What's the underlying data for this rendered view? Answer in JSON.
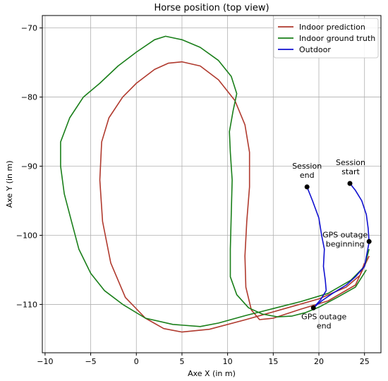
{
  "chart_data": {
    "type": "line",
    "title": "Horse position (top view)",
    "xlabel": "Axe X (in m)",
    "ylabel": "Axe Y (in m)",
    "xlim": [
      -10.3,
      26.8
    ],
    "ylim": [
      -117,
      -68.2
    ],
    "xticks": [
      -10,
      -5,
      0,
      5,
      10,
      15,
      20,
      25
    ],
    "yticks": [
      -70,
      -80,
      -90,
      -100,
      -110
    ],
    "grid": true,
    "legend_position": "top-right",
    "colors": {
      "indoor_prediction": "#b03a2e",
      "indoor_ground_truth": "#1a7f1a",
      "outdoor": "#1010d0",
      "marker": "#000000"
    },
    "series": [
      {
        "name": "Indoor prediction",
        "key": "indoor_prediction",
        "points": [
          [
            25,
            -104
          ],
          [
            24.5,
            -105.8
          ],
          [
            23,
            -107.5
          ],
          [
            20,
            -109.2
          ],
          [
            16,
            -110.7
          ],
          [
            12,
            -112.2
          ],
          [
            8,
            -113.6
          ],
          [
            5,
            -114
          ],
          [
            3,
            -113.5
          ],
          [
            1,
            -112
          ],
          [
            -1.2,
            -109
          ],
          [
            -2.8,
            -104
          ],
          [
            -3.7,
            -98
          ],
          [
            -4,
            -92
          ],
          [
            -3.8,
            -86.5
          ],
          [
            -3,
            -83
          ],
          [
            -1.5,
            -80
          ],
          [
            0,
            -78
          ],
          [
            2,
            -76
          ],
          [
            3.5,
            -75.1
          ],
          [
            5,
            -74.9
          ],
          [
            7,
            -75.5
          ],
          [
            9,
            -77.5
          ],
          [
            10.8,
            -80.5
          ],
          [
            11.9,
            -84
          ],
          [
            12.4,
            -88
          ],
          [
            12.4,
            -93
          ],
          [
            12.1,
            -98
          ],
          [
            11.9,
            -103
          ],
          [
            12,
            -107.5
          ],
          [
            12.6,
            -110.8
          ],
          [
            13.5,
            -112.2
          ],
          [
            15,
            -112
          ],
          [
            18,
            -110.7
          ],
          [
            21,
            -109.5
          ],
          [
            24,
            -107.2
          ],
          [
            25.5,
            -103
          ]
        ]
      },
      {
        "name": "Indoor ground truth",
        "key": "indoor_ground_truth",
        "points": [
          [
            25.5,
            -102
          ],
          [
            25,
            -104.5
          ],
          [
            23.5,
            -106.5
          ],
          [
            21,
            -108.4
          ],
          [
            18,
            -109.6
          ],
          [
            15,
            -110.6
          ],
          [
            12,
            -111.6
          ],
          [
            9,
            -112.7
          ],
          [
            7,
            -113.2
          ],
          [
            4,
            -112.9
          ],
          [
            1,
            -112
          ],
          [
            -1.5,
            -110
          ],
          [
            -3.5,
            -108
          ],
          [
            -5,
            -105.5
          ],
          [
            -6.3,
            -102
          ],
          [
            -7.1,
            -98
          ],
          [
            -7.9,
            -94
          ],
          [
            -8.3,
            -90
          ],
          [
            -8.3,
            -86.5
          ],
          [
            -7.3,
            -83
          ],
          [
            -5.8,
            -80
          ],
          [
            -4,
            -78
          ],
          [
            -2,
            -75.5
          ],
          [
            0,
            -73.5
          ],
          [
            2,
            -71.7
          ],
          [
            3.2,
            -71.2
          ],
          [
            5,
            -71.7
          ],
          [
            7,
            -72.8
          ],
          [
            9,
            -74.7
          ],
          [
            10.4,
            -77
          ],
          [
            11,
            -79.5
          ],
          [
            10.6,
            -82
          ],
          [
            10.2,
            -85
          ],
          [
            10.3,
            -88
          ],
          [
            10.5,
            -92
          ],
          [
            10.4,
            -97
          ],
          [
            10.3,
            -102
          ],
          [
            10.3,
            -106
          ],
          [
            11,
            -108.6
          ],
          [
            12.3,
            -110.5
          ],
          [
            13.8,
            -111.4
          ],
          [
            15.5,
            -111.8
          ],
          [
            17,
            -111.7
          ],
          [
            18.5,
            -111.2
          ],
          [
            20,
            -110.4
          ],
          [
            22,
            -109
          ],
          [
            24,
            -107.5
          ],
          [
            25.2,
            -105
          ]
        ]
      },
      {
        "name": "Outdoor",
        "key": "outdoor",
        "points": [
          [
            23.4,
            -92.5
          ],
          [
            24,
            -93.5
          ],
          [
            24.7,
            -95
          ],
          [
            25.2,
            -97
          ],
          [
            25.4,
            -99
          ],
          [
            25.5,
            -101
          ],
          [
            25,
            -104.5
          ],
          [
            24,
            -106
          ],
          [
            23,
            -107.2
          ],
          [
            21.5,
            -108.4
          ],
          [
            20.3,
            -109.5
          ],
          [
            19.4,
            -110.5
          ]
        ]
      },
      {
        "name": "",
        "key": "outdoor",
        "points": [
          [
            18.7,
            -93
          ],
          [
            19.3,
            -95
          ],
          [
            20,
            -97.5
          ],
          [
            20.3,
            -100
          ],
          [
            20.6,
            -102
          ],
          [
            20.5,
            -104.5
          ],
          [
            20.7,
            -106.5
          ],
          [
            20.8,
            -108
          ],
          [
            20.2,
            -109.3
          ],
          [
            19.4,
            -110.5
          ]
        ]
      }
    ],
    "markers": [
      {
        "x": 18.7,
        "y": -93,
        "label_lines": [
          "Session",
          "end"
        ]
      },
      {
        "x": 23.4,
        "y": -92.5,
        "label_lines": [
          "Session",
          "start"
        ]
      },
      {
        "x": 25.5,
        "y": -100.9,
        "label_lines": [
          "GPS outage",
          "beginning"
        ]
      },
      {
        "x": 19.4,
        "y": -110.5,
        "label_lines": [
          "GPS outage",
          "end"
        ]
      }
    ]
  }
}
